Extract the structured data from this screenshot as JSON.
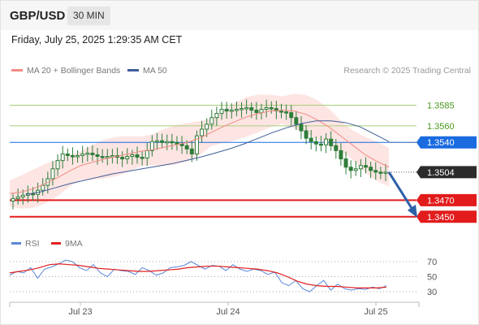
{
  "header": {
    "symbol": "GBP/USD",
    "interval": "30 MIN"
  },
  "timestamp": "Friday, July 25, 2025 1:29:35 AM CET",
  "legend": {
    "ma20_label": "MA 20 + Bollinger Bands",
    "ma50_label": "MA 50",
    "rsi_label": "RSI",
    "ma9_label": "9MA"
  },
  "credit": "Research © 2025 Trading Central",
  "colors": {
    "candle": "#2f7d3a",
    "ma20": "#f28b82",
    "bollinger_fill": "#fde0de",
    "ma50": "#3f5d9a",
    "pivot_blue": "#1a6be0",
    "support_red": "#e21c1c",
    "resistance_green": "#a8cf7a",
    "price_tag": "#2b2b2b",
    "forecast_arrow": "#2e5fa8",
    "rsi": "#5b87d6",
    "rsi_ma9": "#e02020"
  },
  "price_levels": [
    {
      "value": 1.3585,
      "label": "1.3585",
      "kind": "resistance"
    },
    {
      "value": 1.356,
      "label": "1.3560",
      "kind": "resistance"
    },
    {
      "value": 1.354,
      "label": "1.3540",
      "kind": "pivot"
    },
    {
      "value": 1.3504,
      "label": "1.3504",
      "kind": "last"
    },
    {
      "value": 1.347,
      "label": "1.3470",
      "kind": "support"
    },
    {
      "value": 1.345,
      "label": "1.3450",
      "kind": "support"
    }
  ],
  "rsi_levels": [
    "70",
    "50",
    "30"
  ],
  "chart_data": {
    "type": "line",
    "title": "GBP/USD",
    "subtitle": "30 MIN",
    "xlabel": "",
    "ylabel": "",
    "x_ticks": [
      "Jul 23",
      "Jul 24",
      "Jul 25"
    ],
    "ylim": [
      1.3436,
      1.3613
    ],
    "series": [
      {
        "name": "GBP/USD",
        "style": "candlestick",
        "values": [
          1.3472,
          1.3474,
          1.3476,
          1.3478,
          1.3477,
          1.3482,
          1.3488,
          1.3496,
          1.3508,
          1.3518,
          1.3526,
          1.3524,
          1.3523,
          1.3524,
          1.3526,
          1.3527,
          1.3525,
          1.3523,
          1.3522,
          1.3523,
          1.3524,
          1.3522,
          1.352,
          1.3523,
          1.3525,
          1.3522,
          1.3521,
          1.353,
          1.3541,
          1.3542,
          1.354,
          1.3541,
          1.354,
          1.3538,
          1.3536,
          1.3532,
          1.3526,
          1.3548,
          1.3556,
          1.3562,
          1.357,
          1.3575,
          1.358,
          1.3578,
          1.3579,
          1.358,
          1.3581,
          1.3582,
          1.3579,
          1.3576,
          1.358,
          1.3582,
          1.3581,
          1.3578,
          1.3577,
          1.3576,
          1.357,
          1.3562,
          1.3554,
          1.3545,
          1.3541,
          1.3538,
          1.3537,
          1.3544,
          1.3536,
          1.353,
          1.352,
          1.351,
          1.3506,
          1.3508,
          1.3512,
          1.351,
          1.3506,
          1.3504,
          1.3503,
          1.3504
        ]
      },
      {
        "name": "MA 20",
        "values": [
          1.3478,
          1.348,
          1.3484,
          1.349,
          1.3497,
          1.3505,
          1.3512,
          1.3516,
          1.352,
          1.3523,
          1.3526,
          1.3529,
          1.3531,
          1.3534,
          1.3537,
          1.354,
          1.3545,
          1.3552,
          1.3559,
          1.3565,
          1.3571,
          1.3575,
          1.3578,
          1.3579,
          1.3578,
          1.3574,
          1.3567,
          1.3558,
          1.3547,
          1.3536,
          1.3525,
          1.3517,
          1.351
        ]
      },
      {
        "name": "MA 50",
        "values": [
          1.3477,
          1.348,
          1.3485,
          1.349,
          1.3494,
          1.3498,
          1.3502,
          1.3505,
          1.3508,
          1.3511,
          1.3514,
          1.3518,
          1.3522,
          1.3527,
          1.3532,
          1.3538,
          1.3545,
          1.3552,
          1.3558,
          1.3563,
          1.3566,
          1.3566,
          1.3564,
          1.3559,
          1.355,
          1.3541
        ]
      }
    ],
    "forecast": {
      "from": 1.3504,
      "to": 1.345
    },
    "rsi": {
      "ylim": [
        0,
        100
      ],
      "levels": [
        70,
        50,
        30
      ],
      "series": [
        {
          "name": "RSI",
          "values": [
            52,
            57,
            55,
            62,
            48,
            60,
            63,
            67,
            72,
            70,
            62,
            58,
            66,
            55,
            50,
            60,
            58,
            57,
            53,
            62,
            58,
            52,
            55,
            62,
            63,
            65,
            70,
            65,
            60,
            65,
            64,
            58,
            66,
            60,
            57,
            60,
            58,
            53,
            56,
            42,
            38,
            45,
            34,
            30,
            38,
            45,
            32,
            40,
            34,
            32,
            34,
            33,
            36,
            34,
            38
          ]
        },
        {
          "name": "9MA",
          "values": [
            55,
            57,
            59,
            62,
            66,
            67,
            66,
            65,
            63,
            61,
            60,
            59,
            58,
            57,
            57,
            58,
            59,
            60,
            62,
            63,
            64,
            64,
            63,
            62,
            61,
            60,
            58,
            55,
            50,
            44,
            40,
            38,
            37,
            37,
            36,
            35,
            35,
            35,
            36
          ]
        }
      ]
    }
  }
}
